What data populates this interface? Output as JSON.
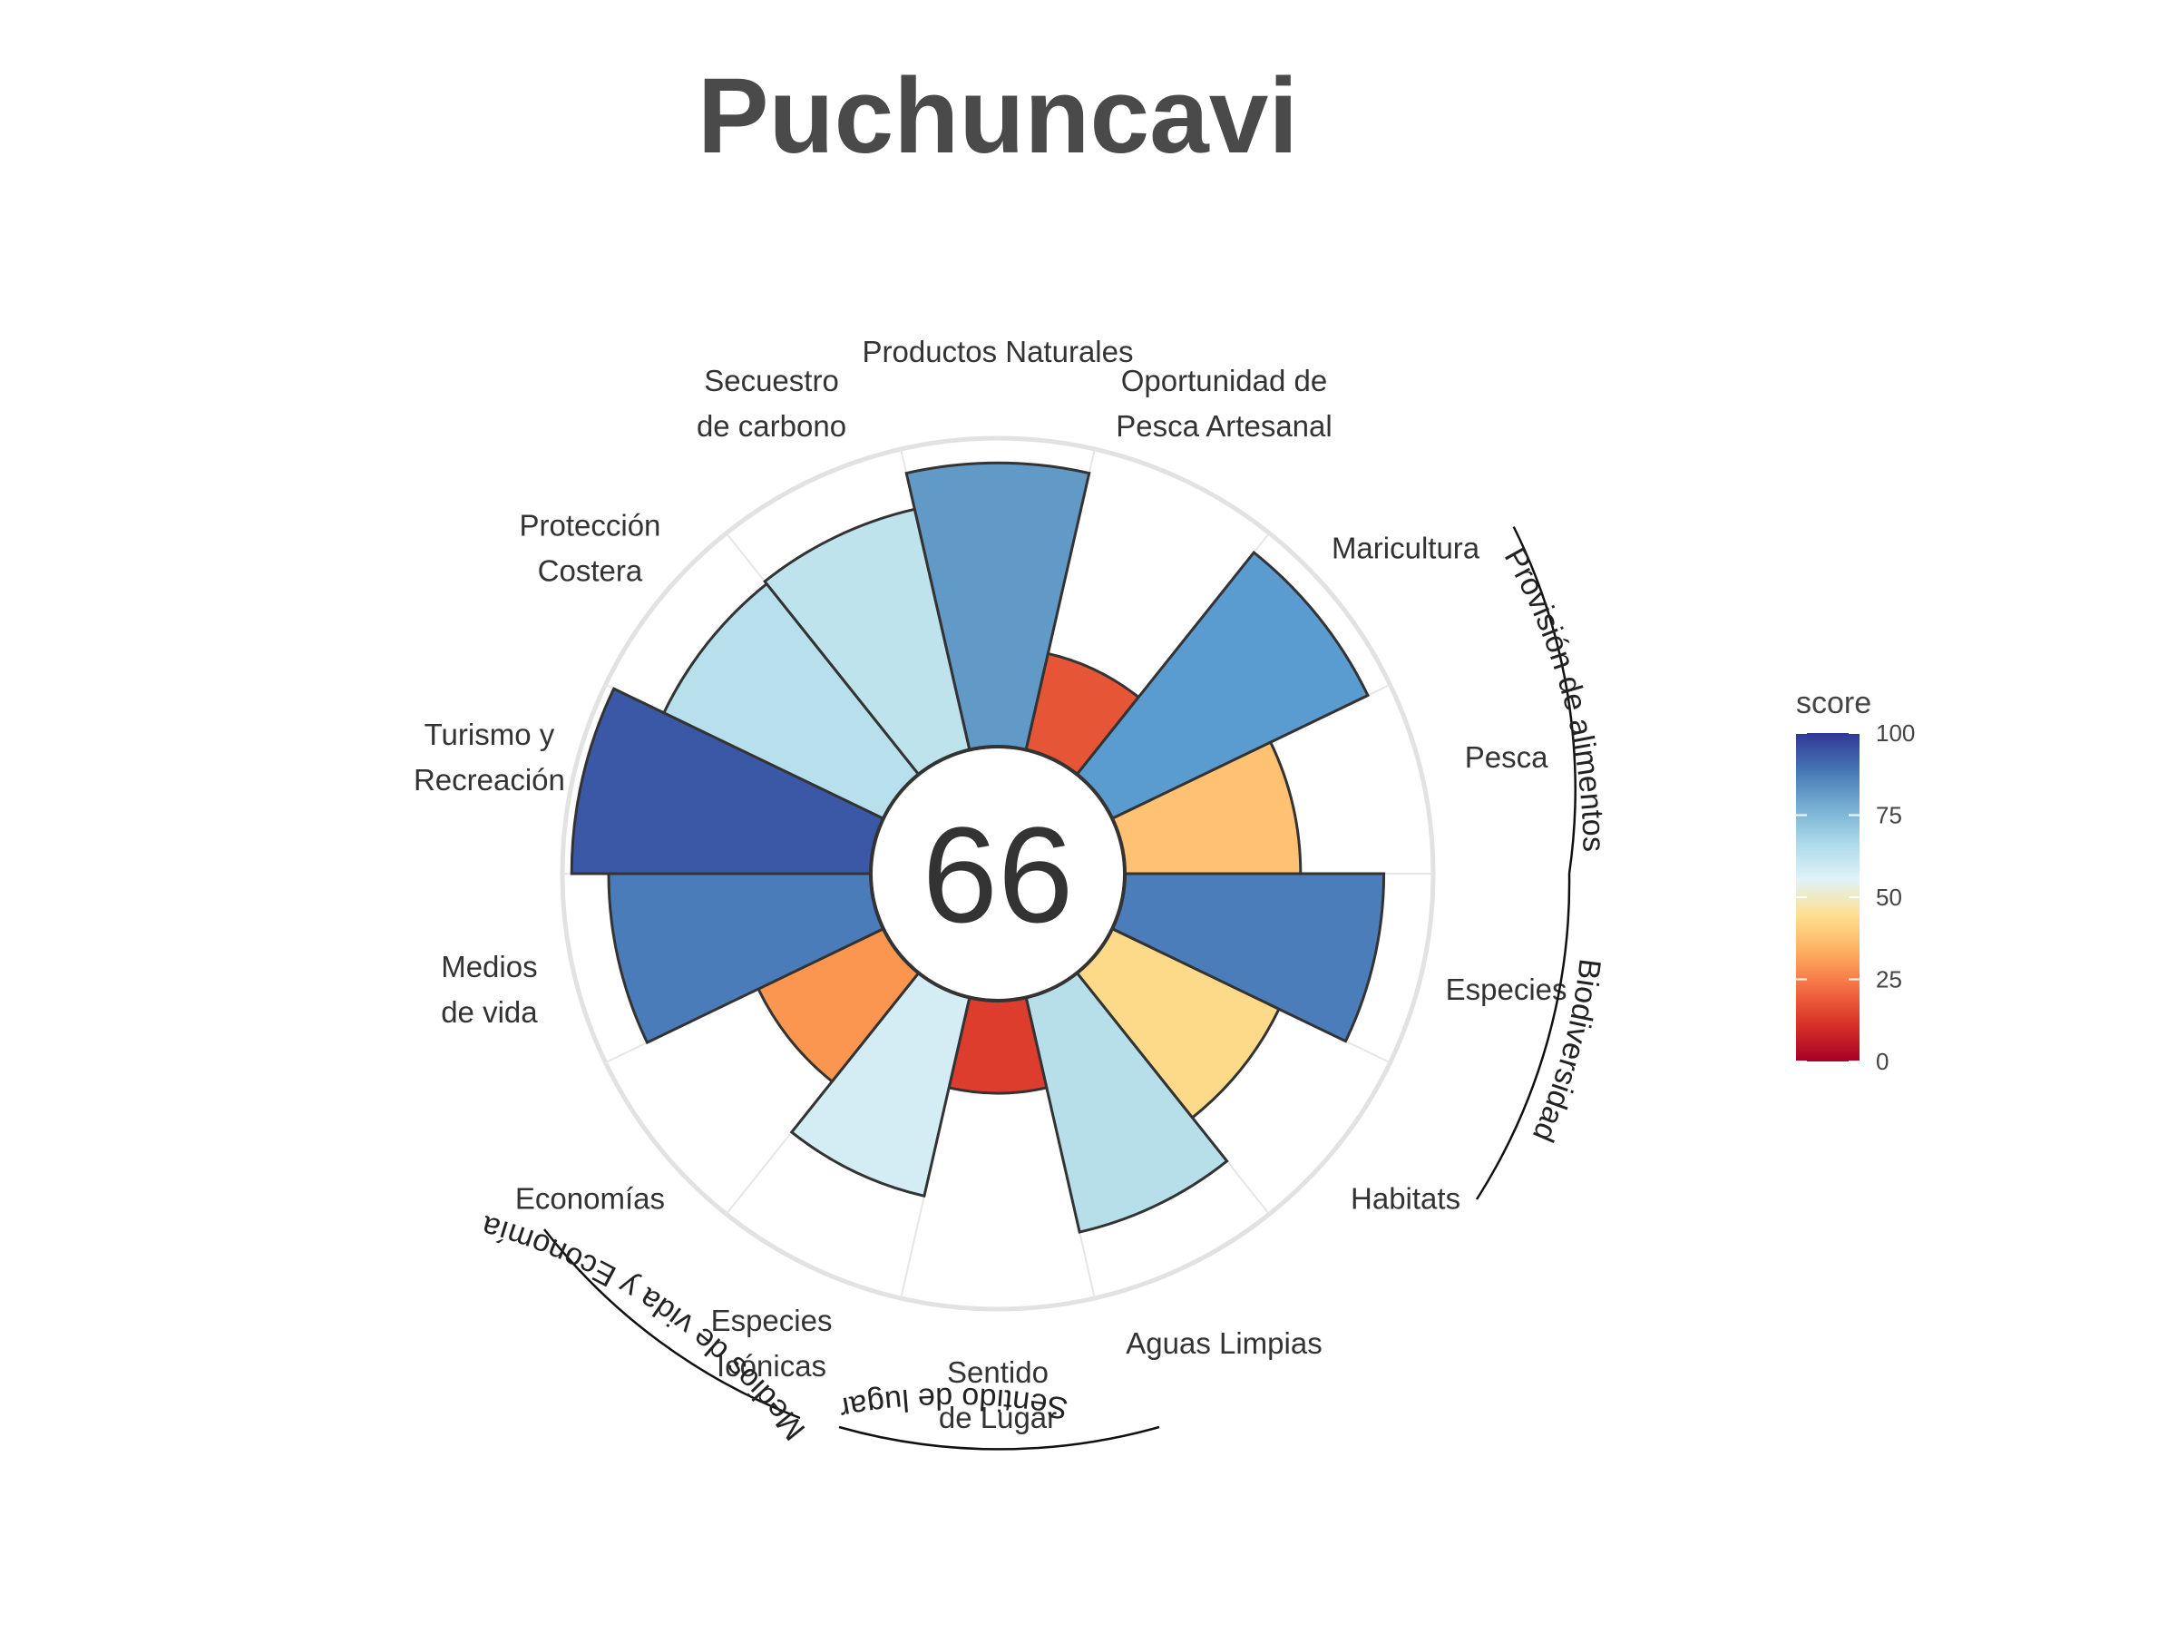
{
  "title": "Puchuncavi",
  "chart_data": {
    "type": "polar-bar",
    "title": "Puchuncavi",
    "center_score": "66",
    "scale_max": 100,
    "goals": [
      {
        "label": [
          "Productos Naturales"
        ],
        "value": 92,
        "color": "#6199c7"
      },
      {
        "label": [
          "Oportunidad de",
          "Pesca Artesanal"
        ],
        "value": 32,
        "color": "#e65536"
      },
      {
        "label": [
          "Maricultura"
        ],
        "value": 92,
        "color": "#5a9bd0"
      },
      {
        "label": [
          "Pesca"
        ],
        "value": 57,
        "color": "#fec272"
      },
      {
        "label": [
          "Especies"
        ],
        "value": 84,
        "color": "#4b7dba"
      },
      {
        "label": [
          "Habitats"
        ],
        "value": 60,
        "color": "#fdd98a"
      },
      {
        "label": [
          "Aguas Limpias"
        ],
        "value": 78,
        "color": "#b6dfea"
      },
      {
        "label": [
          "Sentido",
          "de Lugar"
        ],
        "value": 30,
        "color": "#dd3d2d"
      },
      {
        "label": [
          "Especies",
          "Icónicas"
        ],
        "value": 66,
        "color": "#d4edf4"
      },
      {
        "label": [
          "Economías"
        ],
        "value": 45,
        "color": "#fa9650"
      },
      {
        "label": [
          "Medios",
          "de vida"
        ],
        "value": 85,
        "color": "#4a7cba"
      },
      {
        "label": [
          "Turismo y",
          "Recreación"
        ],
        "value": 97,
        "color": "#3a58a5"
      },
      {
        "label": [
          "Protección",
          "Costera"
        ],
        "value": 79,
        "color": "#b8dfec"
      },
      {
        "label": [
          "Secuestro",
          "de carbono"
        ],
        "value": 80,
        "color": "#bee3ed"
      }
    ],
    "groups": [
      {
        "name": "Provisión de alimentos"
      },
      {
        "name": "Biodiversidad"
      },
      {
        "name": "Sentido de lugar"
      },
      {
        "name": "Medios de vida y Economías"
      }
    ],
    "legend": {
      "title": "score",
      "ticks": [
        "100",
        "75",
        "50",
        "25",
        "0"
      ],
      "colors": [
        "#a50026",
        "#d73027",
        "#f46d43",
        "#fdae61",
        "#fee090",
        "#e0f3f8",
        "#abd9e9",
        "#74add1",
        "#4575b4",
        "#313695"
      ]
    }
  }
}
